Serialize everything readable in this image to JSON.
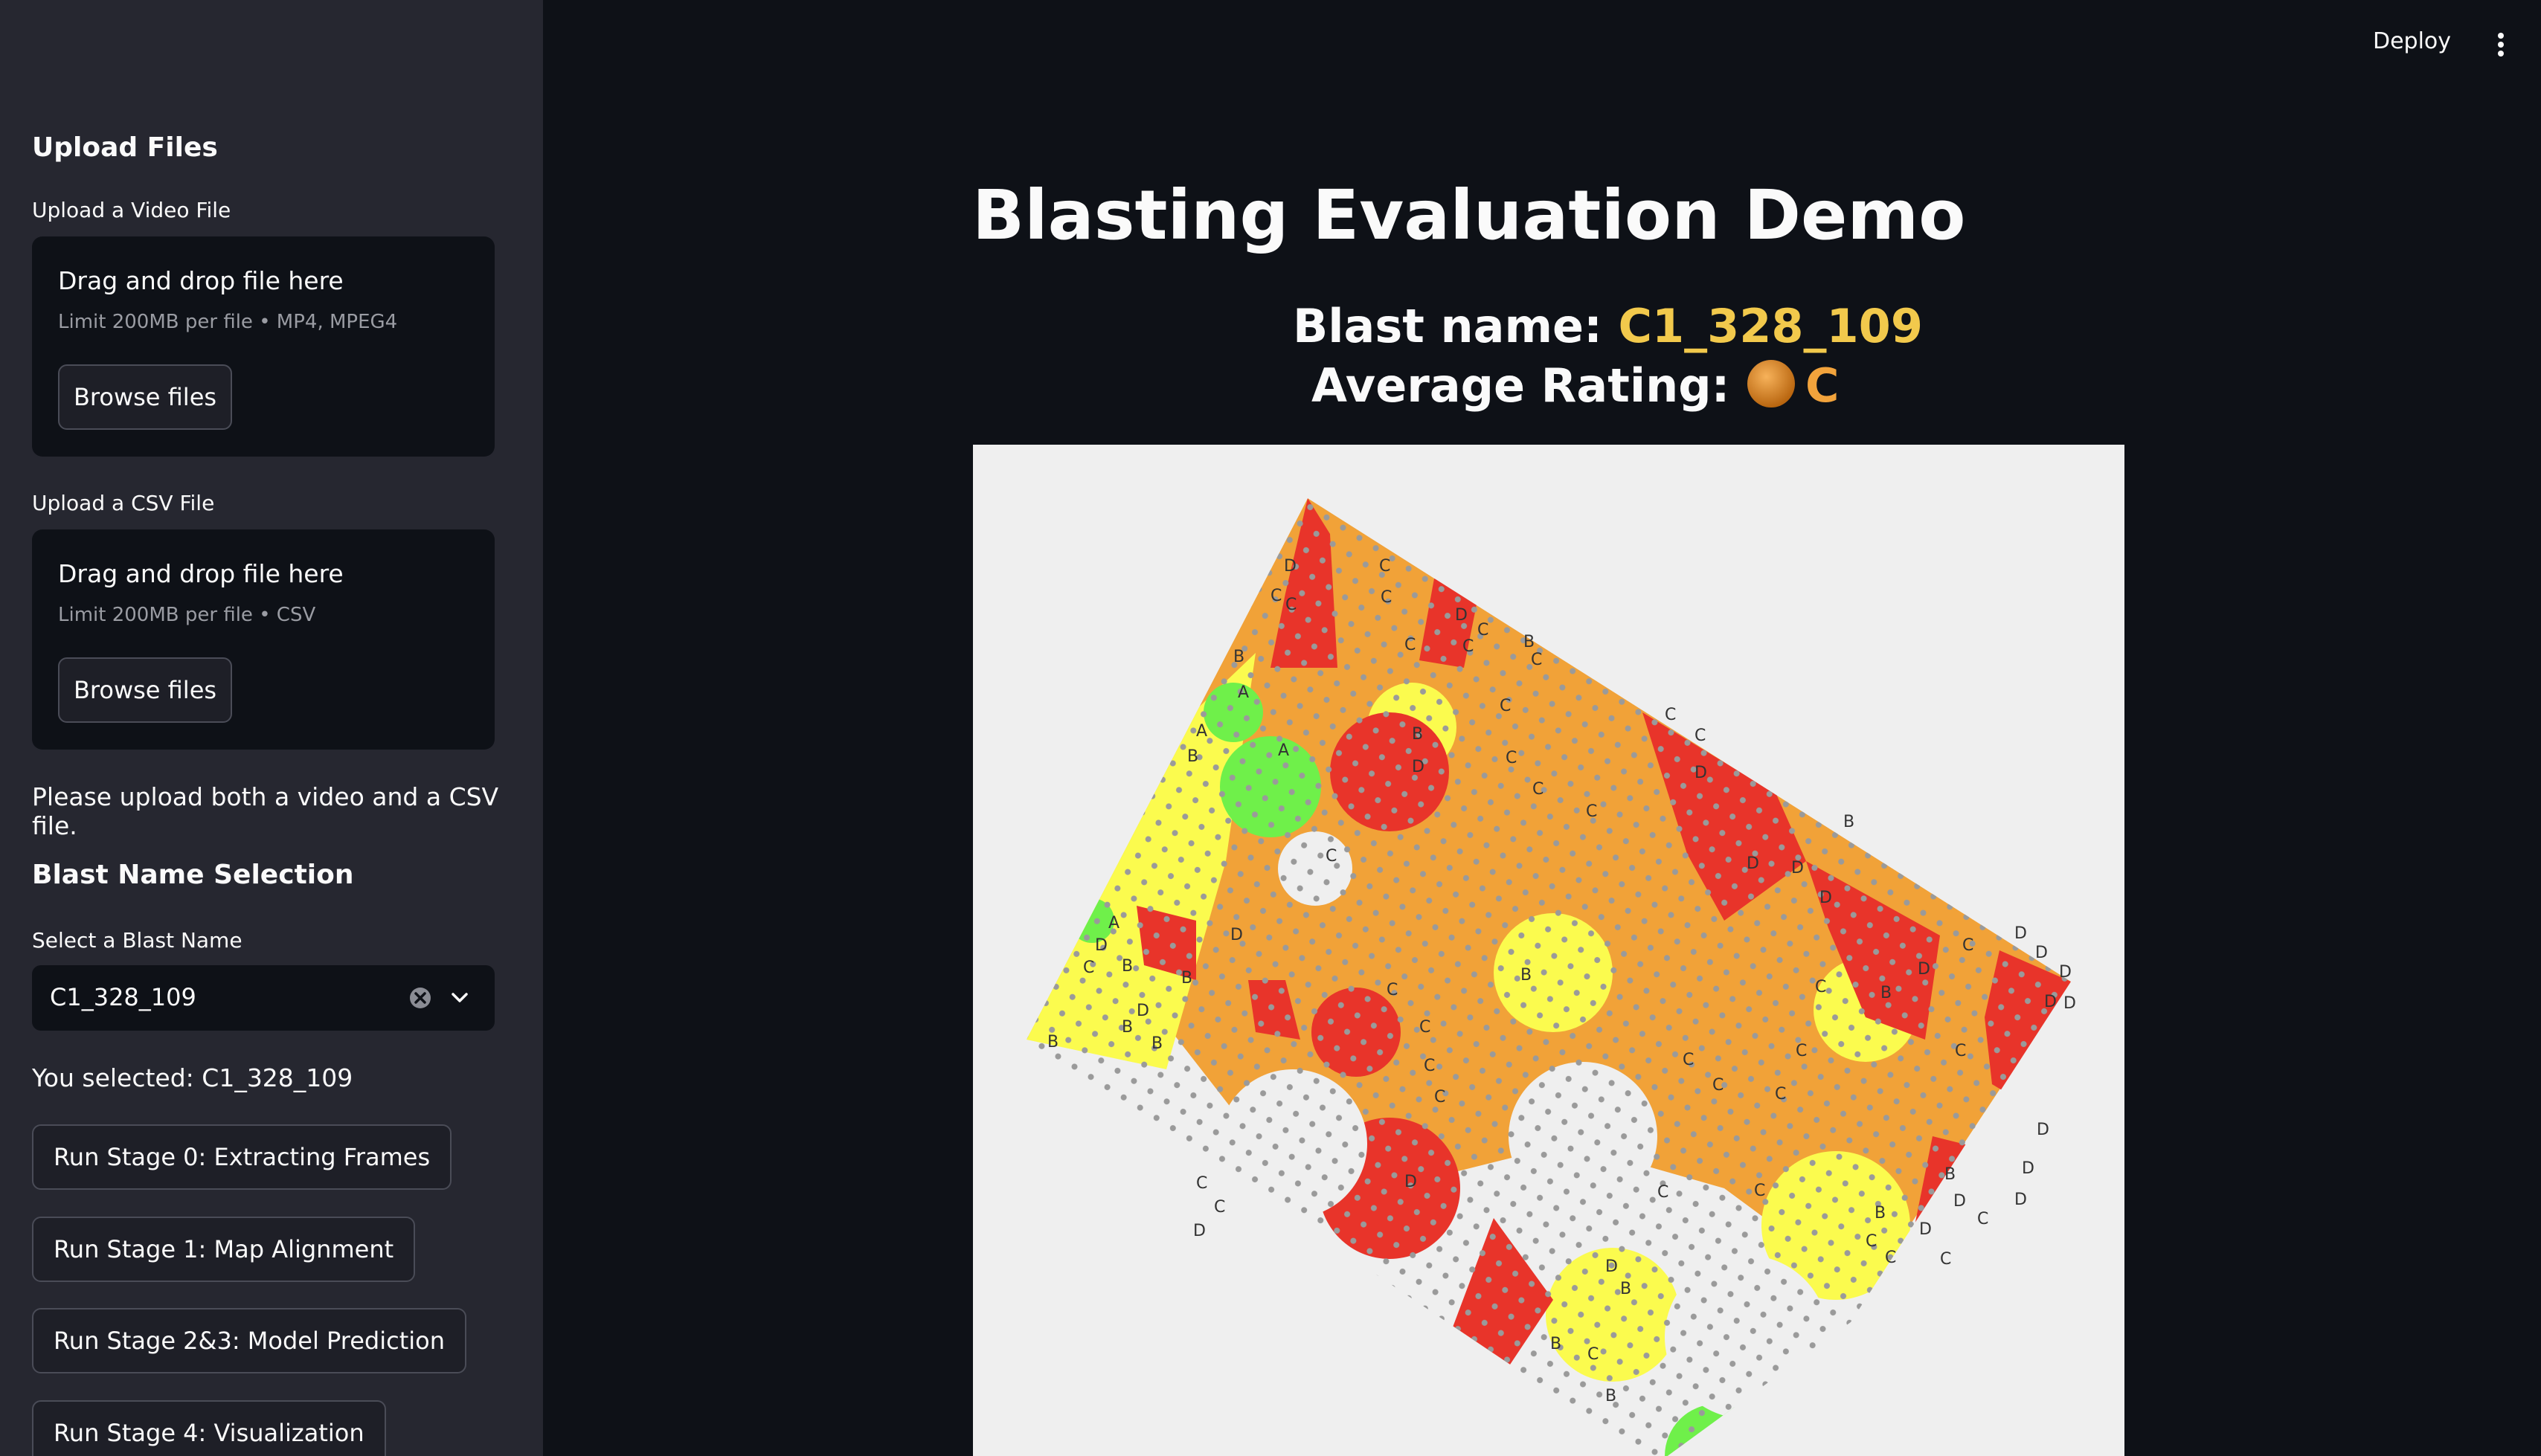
{
  "sidebar": {
    "upload_heading": "Upload Files",
    "video_label": "Upload a Video File",
    "video_drop": {
      "title": "Drag and drop file here",
      "limit": "Limit 200MB per file • MP4, MPEG4",
      "button": "Browse files"
    },
    "csv_label": "Upload a CSV File",
    "csv_drop": {
      "title": "Drag and drop file here",
      "limit": "Limit 200MB per file • CSV",
      "button": "Browse files"
    },
    "upload_notice": "Please upload both a video and a CSV file.",
    "blast_heading": "Blast Name Selection",
    "select_label": "Select a Blast Name",
    "select_value": "C1_328_109",
    "selected_text": "You selected: C1_328_109",
    "stage_buttons": [
      "Run Stage 0: Extracting Frames",
      "Run Stage 1: Map Alignment",
      "Run Stage 2&3: Model Prediction",
      "Run Stage 4: Visualization"
    ]
  },
  "topbar": {
    "deploy": "Deploy",
    "menu_icon": "kebab-menu-icon"
  },
  "main": {
    "title": "Blasting Evaluation Demo",
    "blast_name_label": "Blast name: ",
    "blast_name_value": "C1_328_109",
    "avg_rating_label": "Average Rating: ",
    "avg_rating_value": "C",
    "rating_icon": "orange-circle-icon"
  },
  "map": {
    "legend_colors": {
      "A": "#6ff04a",
      "B": "#fbfb4e",
      "C": "#f1a238",
      "D": "#e8342a"
    },
    "dot_color": "#9a9a9a"
  },
  "colors": {
    "sidebar_bg": "#262730",
    "app_bg": "#0e1117",
    "accent_yellow": "#f2c94c",
    "accent_orange": "#f2a33c"
  }
}
